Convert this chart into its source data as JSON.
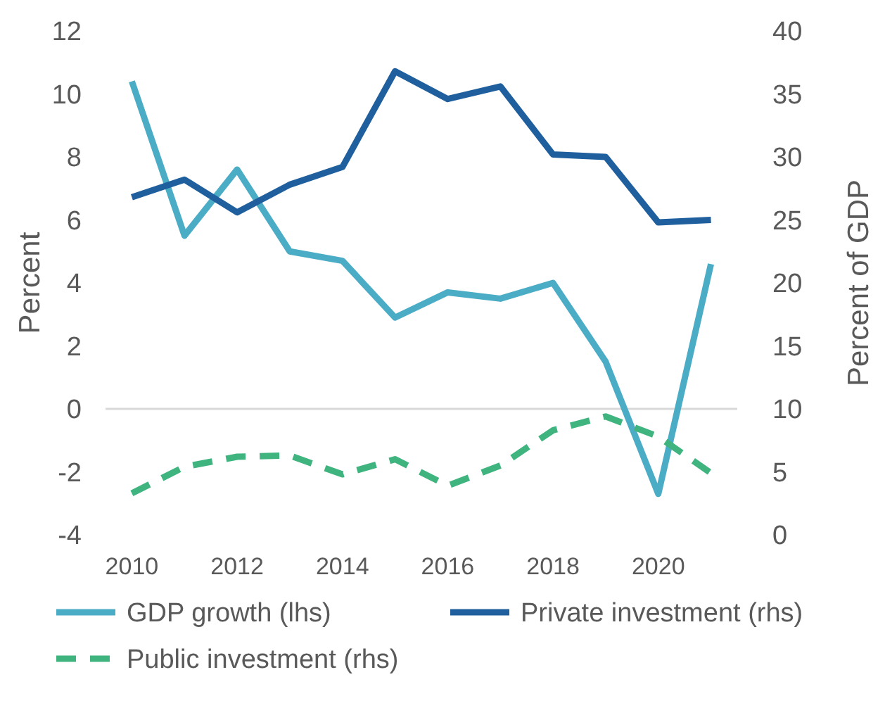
{
  "chart_data": {
    "type": "line",
    "ylabel": "Percent",
    "y2label": "Percent of GDP",
    "x": [
      2010,
      2011,
      2012,
      2013,
      2014,
      2015,
      2016,
      2017,
      2018,
      2019,
      2020,
      2021
    ],
    "series": [
      {
        "name": "GDP growth (lhs)",
        "color": "#4bacc6",
        "values": [
          10.4,
          5.5,
          7.6,
          5.0,
          4.7,
          2.9,
          3.7,
          3.5,
          4.0,
          1.5,
          -2.7,
          4.6
        ]
      },
      {
        "name": "Private investment (rhs)",
        "color": "#1f5f9e",
        "axis": "y2",
        "values": [
          26.8,
          28.2,
          25.6,
          27.8,
          29.2,
          36.8,
          34.6,
          35.6,
          30.2,
          30.0,
          24.8,
          25.0
        ]
      },
      {
        "name": "Public investment (rhs)",
        "color": "#3fb47f",
        "axis": "y2",
        "line_style": "dashed",
        "values": [
          3.3,
          5.4,
          6.2,
          6.3,
          4.8,
          6.0,
          3.9,
          5.5,
          8.3,
          9.4,
          7.8,
          4.9
        ]
      }
    ],
    "xlim": [
      2009.5,
      2021.5
    ],
    "xticks": [
      2010,
      2012,
      2014,
      2016,
      2018,
      2020
    ],
    "ylim": [
      -4,
      12
    ],
    "yticks": [
      -4,
      -2,
      0,
      2,
      4,
      6,
      8,
      10,
      12
    ],
    "y2lim": [
      0,
      40
    ],
    "y2ticks": [
      0,
      5,
      10,
      15,
      20,
      25,
      30,
      35,
      40
    ],
    "ref_lines": [
      {
        "axis": "y",
        "value": 0,
        "color": "#d9d9d9"
      }
    ],
    "grid": false,
    "legend": "bottom"
  }
}
